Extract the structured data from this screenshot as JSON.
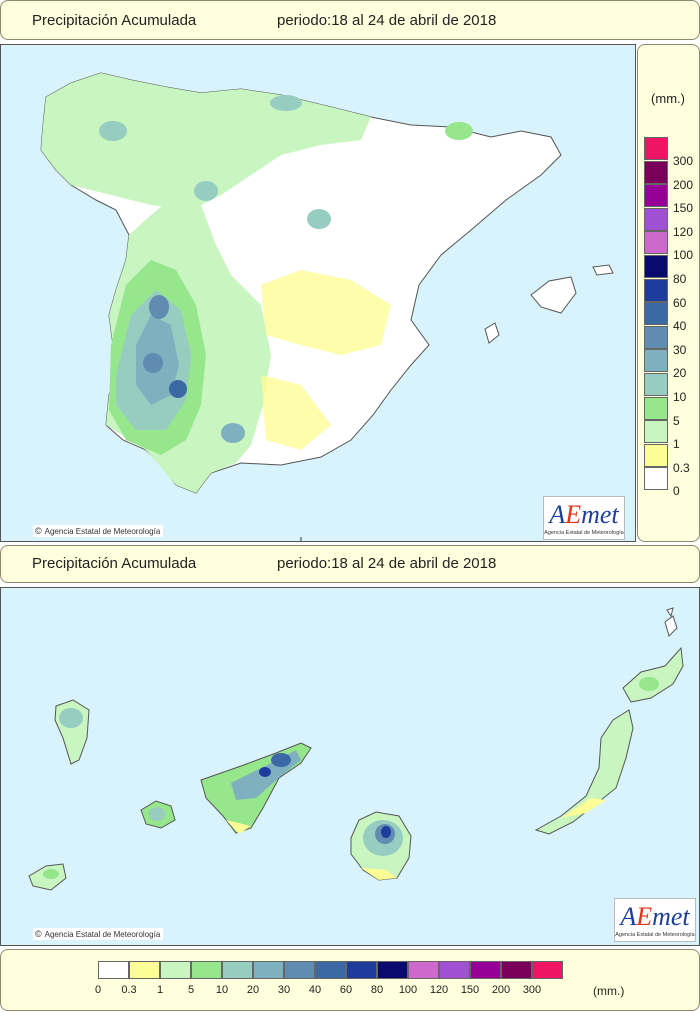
{
  "top_panel": {
    "title": "Precipitación Acumulada",
    "period": "periodo:18 al 24 de abril de 2018",
    "credit": "Agencia Estatal de Meteorología",
    "logo_text_a": "A",
    "logo_text_e": "E",
    "logo_text_rest": "met",
    "logo_sub": "Agencia Estatal de Meteorología"
  },
  "bottom_panel": {
    "title": "Precipitación Acumulada",
    "period": "periodo:18 al 24 de abril de 2018",
    "credit": "Agencia Estatal de Meteorología",
    "logo_text_a": "A",
    "logo_text_e": "E",
    "logo_text_rest": "met",
    "logo_sub": "Agencia Estatal de Meteorología"
  },
  "legend": {
    "unit": "(mm.)",
    "classes": [
      {
        "label": "0",
        "color": "#ffffff"
      },
      {
        "label": "0.3",
        "color": "#fdfd96"
      },
      {
        "label": "1",
        "color": "#c8f5c0"
      },
      {
        "label": "5",
        "color": "#96e68c"
      },
      {
        "label": "10",
        "color": "#96cdc0"
      },
      {
        "label": "20",
        "color": "#7fb0c0"
      },
      {
        "label": "30",
        "color": "#5f8cb0"
      },
      {
        "label": "40",
        "color": "#3c69a5"
      },
      {
        "label": "60",
        "color": "#1e3c9b"
      },
      {
        "label": "80",
        "color": "#0a0a6e"
      },
      {
        "label": "100",
        "color": "#cd69cd"
      },
      {
        "label": "120",
        "color": "#a050d2"
      },
      {
        "label": "150",
        "color": "#960096"
      },
      {
        "label": "200",
        "color": "#78005a"
      },
      {
        "label": "300",
        "color": "#f01464"
      }
    ]
  },
  "colors": {
    "sea": "#d8f3fb",
    "panel_bg": "#ffffdd",
    "land_dry": "#ffffff"
  }
}
